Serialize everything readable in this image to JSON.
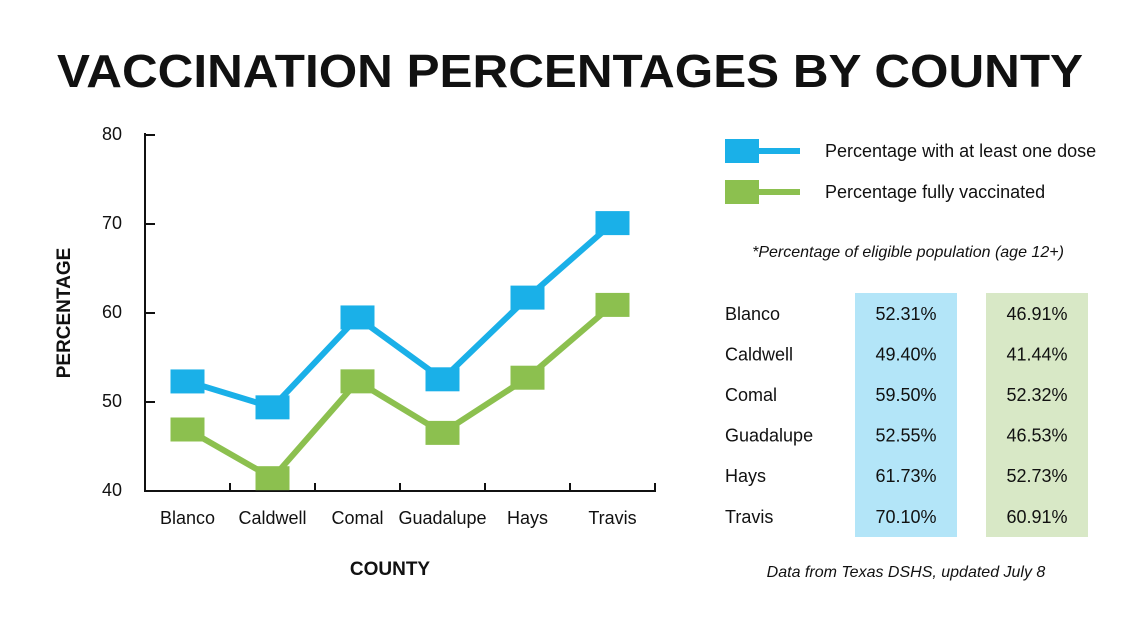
{
  "chart_data": {
    "type": "line",
    "title": "VACCINATION PERCENTAGES BY COUNTY",
    "x_label": "COUNTY",
    "y_label": "PERCENTAGE",
    "categories": [
      "Blanco",
      "Caldwell",
      "Comal",
      "Guadalupe",
      "Hays",
      "Travis"
    ],
    "series": [
      {
        "name": "Percentage with at least one dose",
        "color": "#1ab0e8",
        "values": [
          52.31,
          49.4,
          59.5,
          52.55,
          61.73,
          70.1
        ],
        "value_labels": [
          "52.31%",
          "49.40%",
          "59.50%",
          "52.55%",
          "61.73%",
          "70.10%"
        ]
      },
      {
        "name": "Percentage fully vaccinated",
        "color": "#8cc04f",
        "values": [
          46.91,
          41.44,
          52.32,
          46.53,
          52.73,
          60.91
        ],
        "value_labels": [
          "46.91%",
          "41.44%",
          "52.32%",
          "46.53%",
          "52.73%",
          "60.91%"
        ]
      }
    ],
    "ylim": [
      40,
      80
    ],
    "yticks": [
      40,
      50,
      60,
      70,
      80
    ],
    "note": "*Percentage of eligible population (age 12+)",
    "source": "Data from Texas DSHS, updated July 8"
  }
}
